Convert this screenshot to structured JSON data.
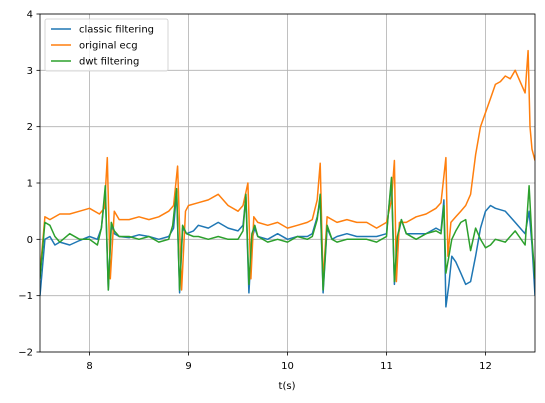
{
  "chart_data": {
    "type": "line",
    "title": "",
    "xlabel": "t(s)",
    "ylabel": "",
    "xlim": [
      7.5,
      12.5
    ],
    "ylim": [
      -2,
      4
    ],
    "xticks": [
      8,
      9,
      10,
      11,
      12
    ],
    "yticks": [
      -2,
      -1,
      0,
      1,
      2,
      3,
      4
    ],
    "xtick_labels": [
      "8",
      "9",
      "10",
      "11",
      "12"
    ],
    "ytick_labels": [
      "−2",
      "−1",
      "0",
      "1",
      "2",
      "3",
      "4"
    ],
    "grid": true,
    "legend_position": "top-left",
    "series": [
      {
        "name": "classic filtering",
        "color": "#1f77b4",
        "x": [
          7.5,
          7.55,
          7.6,
          7.65,
          7.7,
          7.8,
          7.9,
          8.0,
          8.08,
          8.12,
          8.16,
          8.19,
          8.22,
          8.25,
          8.3,
          8.4,
          8.5,
          8.6,
          8.7,
          8.8,
          8.85,
          8.88,
          8.91,
          8.94,
          8.98,
          9.05,
          9.1,
          9.2,
          9.3,
          9.4,
          9.5,
          9.55,
          9.58,
          9.61,
          9.64,
          9.67,
          9.7,
          9.8,
          9.9,
          10.0,
          10.1,
          10.2,
          10.25,
          10.3,
          10.33,
          10.36,
          10.4,
          10.45,
          10.5,
          10.6,
          10.7,
          10.8,
          10.9,
          11.0,
          11.02,
          11.05,
          11.08,
          11.11,
          11.15,
          11.2,
          11.3,
          11.4,
          11.5,
          11.55,
          11.58,
          11.6,
          11.63,
          11.66,
          11.7,
          11.75,
          11.8,
          11.85,
          11.9,
          11.95,
          12.0,
          12.05,
          12.1,
          12.2,
          12.3,
          12.4,
          12.44,
          12.47,
          12.5
        ],
        "y": [
          -1.0,
          0.0,
          0.05,
          -0.1,
          -0.05,
          -0.1,
          -0.02,
          0.05,
          0.0,
          0.2,
          0.85,
          -0.9,
          0.25,
          0.1,
          0.05,
          0.03,
          0.08,
          0.05,
          0.0,
          0.05,
          0.2,
          0.85,
          -0.95,
          0.2,
          0.1,
          0.15,
          0.25,
          0.2,
          0.3,
          0.2,
          0.15,
          0.25,
          0.75,
          -0.95,
          0.0,
          0.2,
          0.05,
          0.0,
          0.1,
          0.0,
          0.05,
          0.05,
          0.1,
          0.4,
          0.7,
          -0.95,
          0.2,
          0.0,
          0.05,
          0.1,
          0.05,
          0.05,
          0.05,
          0.1,
          0.5,
          1.0,
          -0.8,
          0.0,
          0.35,
          0.1,
          0.1,
          0.1,
          0.2,
          0.15,
          0.7,
          -1.2,
          -0.8,
          -0.3,
          -0.4,
          -0.6,
          -0.8,
          -0.75,
          -0.3,
          0.2,
          0.5,
          0.6,
          0.55,
          0.5,
          0.3,
          0.1,
          0.5,
          -0.1,
          -1.0
        ]
      },
      {
        "name": "original ecg",
        "color": "#ff7f0e",
        "x": [
          7.5,
          7.55,
          7.6,
          7.7,
          7.8,
          7.9,
          8.0,
          8.1,
          8.15,
          8.18,
          8.21,
          8.25,
          8.3,
          8.4,
          8.5,
          8.6,
          8.7,
          8.8,
          8.85,
          8.89,
          8.93,
          8.97,
          9.0,
          9.1,
          9.2,
          9.3,
          9.4,
          9.5,
          9.55,
          9.6,
          9.63,
          9.66,
          9.7,
          9.8,
          9.9,
          10.0,
          10.1,
          10.2,
          10.25,
          10.3,
          10.33,
          10.36,
          10.4,
          10.5,
          10.6,
          10.7,
          10.8,
          10.9,
          11.0,
          11.05,
          11.08,
          11.1,
          11.13,
          11.2,
          11.3,
          11.4,
          11.5,
          11.55,
          11.6,
          11.62,
          11.65,
          11.7,
          11.75,
          11.8,
          11.85,
          11.9,
          11.95,
          12.0,
          12.05,
          12.1,
          12.15,
          12.2,
          12.25,
          12.3,
          12.35,
          12.4,
          12.43,
          12.45,
          12.47,
          12.5
        ],
        "y": [
          -0.6,
          0.4,
          0.35,
          0.45,
          0.45,
          0.5,
          0.55,
          0.45,
          0.55,
          1.45,
          -0.7,
          0.5,
          0.35,
          0.35,
          0.4,
          0.35,
          0.4,
          0.5,
          0.6,
          1.3,
          -0.9,
          0.5,
          0.6,
          0.65,
          0.7,
          0.8,
          0.6,
          0.5,
          0.6,
          1.0,
          -0.7,
          0.4,
          0.3,
          0.25,
          0.3,
          0.2,
          0.25,
          0.3,
          0.35,
          0.7,
          1.35,
          -0.75,
          0.4,
          0.3,
          0.35,
          0.3,
          0.3,
          0.2,
          0.3,
          0.7,
          1.4,
          -0.75,
          0.3,
          0.3,
          0.4,
          0.45,
          0.55,
          0.65,
          1.45,
          -0.3,
          0.3,
          0.4,
          0.5,
          0.6,
          0.8,
          1.5,
          2.0,
          2.25,
          2.5,
          2.75,
          2.8,
          2.9,
          2.85,
          3.0,
          2.8,
          2.6,
          3.35,
          2.0,
          1.6,
          1.4
        ]
      },
      {
        "name": "dwt filtering",
        "color": "#2ca02c",
        "x": [
          7.5,
          7.55,
          7.6,
          7.65,
          7.7,
          7.8,
          7.9,
          8.0,
          8.08,
          8.12,
          8.16,
          8.19,
          8.22,
          8.25,
          8.3,
          8.4,
          8.5,
          8.6,
          8.7,
          8.8,
          8.84,
          8.88,
          8.91,
          8.94,
          8.98,
          9.05,
          9.1,
          9.2,
          9.3,
          9.4,
          9.5,
          9.55,
          9.58,
          9.61,
          9.64,
          9.67,
          9.7,
          9.8,
          9.9,
          10.0,
          10.1,
          10.2,
          10.25,
          10.3,
          10.33,
          10.36,
          10.4,
          10.45,
          10.5,
          10.6,
          10.7,
          10.8,
          10.9,
          11.0,
          11.02,
          11.05,
          11.08,
          11.11,
          11.15,
          11.2,
          11.3,
          11.4,
          11.5,
          11.55,
          11.58,
          11.6,
          11.63,
          11.66,
          11.7,
          11.75,
          11.8,
          11.85,
          11.9,
          11.95,
          12.0,
          12.05,
          12.1,
          12.2,
          12.3,
          12.4,
          12.44,
          12.47,
          12.5
        ],
        "y": [
          -0.7,
          0.3,
          0.25,
          0.05,
          -0.05,
          0.1,
          0.0,
          0.0,
          -0.1,
          0.2,
          0.95,
          -0.9,
          0.3,
          0.15,
          0.05,
          0.05,
          0.0,
          0.05,
          -0.05,
          0.0,
          0.25,
          0.9,
          -0.9,
          0.25,
          0.1,
          0.05,
          0.05,
          0.0,
          0.05,
          0.0,
          0.0,
          0.15,
          0.8,
          -0.8,
          0.1,
          0.25,
          0.05,
          -0.05,
          0.0,
          -0.05,
          0.05,
          0.0,
          0.05,
          0.35,
          0.8,
          -0.9,
          0.25,
          0.0,
          -0.05,
          0.0,
          0.0,
          0.0,
          -0.05,
          0.05,
          0.5,
          1.1,
          -0.75,
          0.05,
          0.35,
          0.1,
          0.0,
          0.1,
          0.15,
          0.1,
          0.6,
          -0.6,
          -0.3,
          0.0,
          0.15,
          0.3,
          0.35,
          -0.2,
          0.2,
          0.0,
          -0.15,
          -0.1,
          0.0,
          -0.05,
          0.15,
          -0.1,
          0.95,
          0.0,
          -0.7
        ]
      }
    ]
  }
}
